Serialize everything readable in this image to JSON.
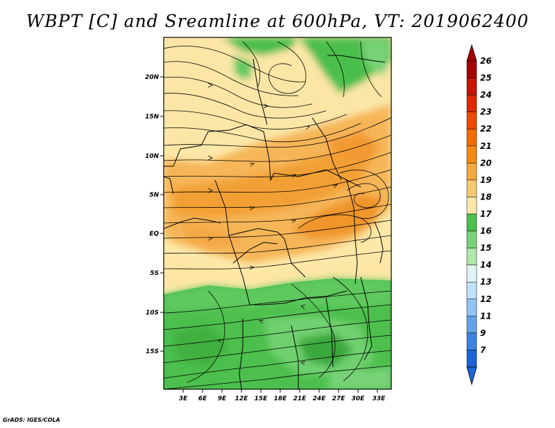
{
  "title": "WBPT [C] and Sreamline at 600hPa, VT: 2019062400",
  "credit": "GrADS: IGES/COLA",
  "map": {
    "lon_labels": [
      "3E",
      "6E",
      "9E",
      "12E",
      "15E",
      "18E",
      "21E",
      "24E",
      "27E",
      "30E",
      "33E"
    ],
    "lat_labels": [
      "20N",
      "15N",
      "10N",
      "5N",
      "EQ",
      "5S",
      "10S",
      "15S"
    ]
  },
  "colorbar": {
    "labels": [
      "26",
      "25",
      "24",
      "23",
      "22",
      "21",
      "20",
      "19",
      "18",
      "17",
      "16",
      "15",
      "14",
      "13",
      "12",
      "11",
      "9",
      "7"
    ],
    "colors": [
      "#a50000",
      "#c81400",
      "#e02800",
      "#f04a00",
      "#f56a00",
      "#f48a10",
      "#f6a83a",
      "#f8c870",
      "#fde8a8",
      "#4cbf4c",
      "#78d378",
      "#aee8aa",
      "#e0f5f3",
      "#bfe0fa",
      "#90c4f4",
      "#62a4ec",
      "#3a84e4",
      "#1e64d8"
    ],
    "top_color": "#a50000",
    "bottom_color": "#1e64d8"
  }
}
